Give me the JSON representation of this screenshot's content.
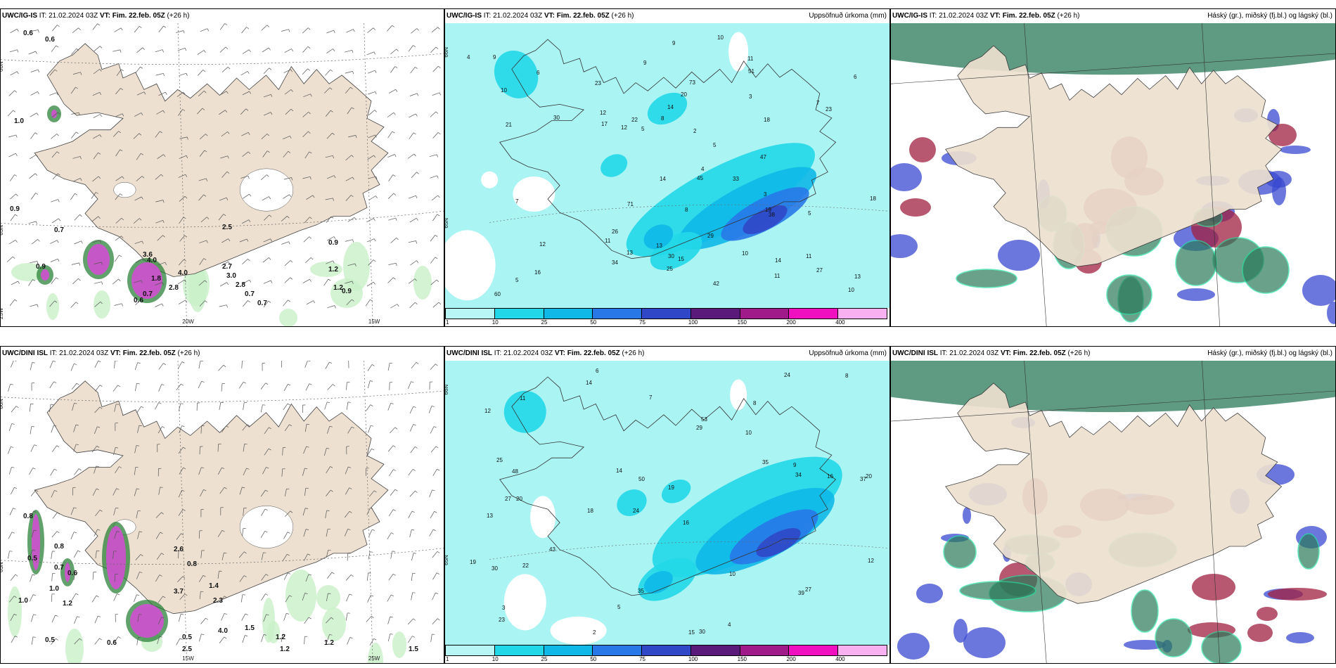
{
  "panels": [
    {
      "id": "p1",
      "model": "UWC/IG-IS",
      "it": " IT: 21.02.2024 03Z ",
      "vt": "VT: Fim. 22.feb. 05Z",
      "lead": " (+26 h)",
      "right_title": "",
      "type": "wind",
      "grid_labels": [
        "66N",
        "65N",
        "20W",
        "15W",
        "25W"
      ],
      "values": [
        "0.6",
        "0.6",
        "1.0",
        "0.9",
        "0.7",
        "3.6",
        "4.0",
        "1.8",
        "4.0",
        "2.8",
        "2.5",
        "2.7",
        "3.0",
        "2.8",
        "1.2",
        "0.9",
        "0.9",
        "0.7",
        "0.6",
        "0.7",
        "1.2",
        "0.9",
        "0.7"
      ]
    },
    {
      "id": "p2",
      "model": "UWC/IG-IS",
      "it": " IT: 21.02.2024 03Z ",
      "vt": "VT: Fim. 22.feb. 05Z",
      "lead": " (+26 h)",
      "right_title": "Uppsöfnuð úrkoma (mm)",
      "type": "precip",
      "grid_labels": [
        "66N",
        "65N"
      ],
      "values": [
        "5",
        "5",
        "4",
        "8",
        "9",
        "10",
        "11",
        "11",
        "14",
        "11",
        "10",
        "17",
        "13",
        "9",
        "10",
        "12",
        "19",
        "7",
        "14",
        "6",
        "4",
        "16",
        "25",
        "33",
        "38",
        "51",
        "22",
        "20",
        "23",
        "29",
        "27",
        "71",
        "73",
        "60",
        "45",
        "42",
        "30",
        "18",
        "21",
        "13",
        "30",
        "26",
        "23",
        "34",
        "47",
        "12",
        "14",
        "15",
        "18",
        "13",
        "10",
        "8",
        "9",
        "11",
        "12",
        "6",
        "7",
        "5",
        "5",
        "3",
        "2",
        "3"
      ]
    },
    {
      "id": "p3",
      "model": "UWC/IG-IS",
      "it": " IT: 21.02.2024 03Z ",
      "vt": "VT: Fim. 22.feb. 05Z",
      "lead": " (+26 h)",
      "right_title": "Háský (gr.), miðský (fj.bl.) og lágský (bl.)",
      "type": "cloud"
    },
    {
      "id": "p4",
      "model": "UWC/DINI ISL",
      "it": " IT: 21.02.2024 03Z ",
      "vt": "VT: Fim. 22.feb. 05Z",
      "lead": " (+26 h)",
      "right_title": "",
      "type": "wind",
      "grid_labels": [
        "66N",
        "65N",
        "15W",
        "25W"
      ],
      "values": [
        "0.8",
        "0.5",
        "0.8",
        "0.7",
        "0.6",
        "1.0",
        "1.0",
        "1.2",
        "0.5",
        "0.6",
        "2.6",
        "0.8",
        "3.7",
        "0.5",
        "1.4",
        "2.3",
        "4.0",
        "1.5",
        "2.5",
        "1.2",
        "1.2",
        "1.2",
        "1.5"
      ]
    },
    {
      "id": "p5",
      "model": "UWC/DINI ISL",
      "it": " IT: 21.02.2024 03Z ",
      "vt": "VT: Fim. 22.feb. 05Z",
      "lead": " (+26 h)",
      "right_title": "Uppsöfnuð úrkoma (mm)",
      "type": "precip",
      "grid_labels": [
        "66N",
        "65N"
      ],
      "values": [
        "6",
        "8",
        "37",
        "24",
        "16",
        "20",
        "12",
        "10",
        "13",
        "29",
        "19",
        "23",
        "14",
        "18",
        "15",
        "30",
        "35",
        "24",
        "35",
        "43",
        "48",
        "27",
        "20",
        "16",
        "19",
        "25",
        "50",
        "34",
        "27",
        "30",
        "39",
        "53",
        "22",
        "14",
        "10",
        "12",
        "9",
        "5",
        "8",
        "7",
        "3",
        "2",
        "4",
        "11"
      ]
    },
    {
      "id": "p6",
      "model": "UWC/DINI ISL",
      "it": " IT: 21.02.2024 03Z ",
      "vt": "VT: Fim. 22.feb. 05Z",
      "lead": " (+26 h)",
      "right_title": "Háský (gr.), miðský (fj.bl.) og lágský (bl.)",
      "type": "cloud"
    }
  ],
  "legend": {
    "labels": [
      "1",
      "10",
      "25",
      "50",
      "75",
      "100",
      "150",
      "200",
      "400"
    ],
    "colors": [
      "#b8f5f5",
      "#22d8e8",
      "#10b8e8",
      "#2878e8",
      "#3048c8",
      "#5a1a7a",
      "#a01a8a",
      "#f010c0",
      "#f8b0f0"
    ]
  },
  "colors": {
    "land": "#ede0d0",
    "precip_bg": "#aaf4f4",
    "wind_light": "#c8f0c8",
    "wind_purple": "#d050d0",
    "cloud_high": "#2a7a5a",
    "cloud_mid": "#a02040",
    "cloud_low": "#3a4ad0"
  }
}
